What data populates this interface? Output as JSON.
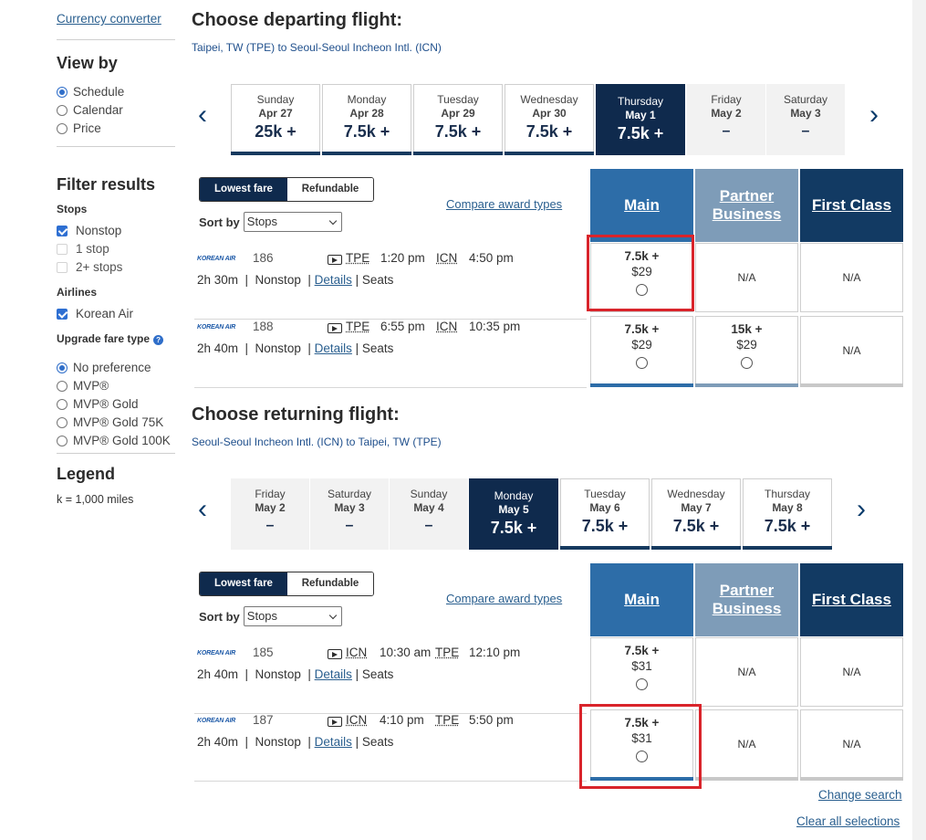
{
  "sidebar": {
    "currency_link": "Currency converter",
    "view_by": {
      "heading": "View by",
      "options": [
        {
          "label": "Schedule",
          "selected": true
        },
        {
          "label": "Calendar",
          "selected": false
        },
        {
          "label": "Price",
          "selected": false
        }
      ]
    },
    "filter": {
      "heading": "Filter results",
      "stops_label": "Stops",
      "stops": [
        {
          "label": "Nonstop",
          "checked": true
        },
        {
          "label": "1 stop",
          "checked": false
        },
        {
          "label": "2+ stops",
          "checked": false
        }
      ],
      "airlines_label": "Airlines",
      "airlines": [
        {
          "label": "Korean Air",
          "checked": true
        }
      ],
      "upgrade_label": "Upgrade fare type",
      "upgrade_help_icon": "?",
      "upgrade_options": [
        {
          "label": "No preference",
          "selected": true
        },
        {
          "label": "MVP®",
          "selected": false
        },
        {
          "label": "MVP® Gold",
          "selected": false
        },
        {
          "label": "MVP® Gold 75K",
          "selected": false
        },
        {
          "label": "MVP® Gold 100K",
          "selected": false
        }
      ]
    },
    "legend": {
      "heading": "Legend",
      "text": "k = 1,000 miles"
    }
  },
  "departing": {
    "title": "Choose departing flight:",
    "route": "Taipei, TW (TPE) to Seoul-Seoul Incheon Intl. (ICN)",
    "dates": [
      {
        "day": "Sunday",
        "date": "Apr 27",
        "price": "25k +",
        "state": "avail"
      },
      {
        "day": "Monday",
        "date": "Apr 28",
        "price": "7.5k +",
        "state": "avail"
      },
      {
        "day": "Tuesday",
        "date": "Apr 29",
        "price": "7.5k +",
        "state": "avail"
      },
      {
        "day": "Wednesday",
        "date": "Apr 30",
        "price": "7.5k +",
        "state": "avail"
      },
      {
        "day": "Thursday",
        "date": "May 1",
        "price": "7.5k +",
        "state": "selected"
      },
      {
        "day": "Friday",
        "date": "May 2",
        "price": "–",
        "state": "na"
      },
      {
        "day": "Saturday",
        "date": "May 3",
        "price": "–",
        "state": "na"
      }
    ],
    "toggle": {
      "lowest": "Lowest fare",
      "refundable": "Refundable"
    },
    "sort": {
      "label": "Sort by",
      "value": "Stops"
    },
    "compare_link": "Compare award types",
    "headers": {
      "main": "Main",
      "partner": "Partner Business",
      "first": "First Class"
    },
    "flights": [
      {
        "airline": "KOREAN AIR",
        "number": "186",
        "from": "TPE",
        "dep": "1:20 pm",
        "to": "ICN",
        "arr": "4:50 pm",
        "duration": "2h 30m",
        "stops": "Nonstop",
        "details": "Details",
        "seats": "Seats",
        "main": {
          "miles": "7.5k +",
          "cash": "$29"
        },
        "partner": "N/A",
        "first": "N/A"
      },
      {
        "airline": "KOREAN AIR",
        "number": "188",
        "from": "TPE",
        "dep": "6:55 pm",
        "to": "ICN",
        "arr": "10:35 pm",
        "duration": "2h 40m",
        "stops": "Nonstop",
        "details": "Details",
        "seats": "Seats",
        "main": {
          "miles": "7.5k +",
          "cash": "$29"
        },
        "partner": {
          "miles": "15k +",
          "cash": "$29"
        },
        "first": "N/A"
      }
    ]
  },
  "returning": {
    "title": "Choose returning flight:",
    "route": "Seoul-Seoul Incheon Intl. (ICN) to Taipei, TW (TPE)",
    "dates": [
      {
        "day": "Friday",
        "date": "May 2",
        "price": "–",
        "state": "na"
      },
      {
        "day": "Saturday",
        "date": "May 3",
        "price": "–",
        "state": "na"
      },
      {
        "day": "Sunday",
        "date": "May 4",
        "price": "–",
        "state": "na"
      },
      {
        "day": "Monday",
        "date": "May 5",
        "price": "7.5k +",
        "state": "selected"
      },
      {
        "day": "Tuesday",
        "date": "May 6",
        "price": "7.5k +",
        "state": "avail"
      },
      {
        "day": "Wednesday",
        "date": "May 7",
        "price": "7.5k +",
        "state": "avail"
      },
      {
        "day": "Thursday",
        "date": "May 8",
        "price": "7.5k +",
        "state": "avail"
      }
    ],
    "toggle": {
      "lowest": "Lowest fare",
      "refundable": "Refundable"
    },
    "sort": {
      "label": "Sort by",
      "value": "Stops"
    },
    "compare_link": "Compare award types",
    "headers": {
      "main": "Main",
      "partner": "Partner Business",
      "first": "First Class"
    },
    "flights": [
      {
        "airline": "KOREAN AIR",
        "number": "185",
        "from": "ICN",
        "dep": "10:30 am",
        "to": "TPE",
        "arr": "12:10 pm",
        "duration": "2h 40m",
        "stops": "Nonstop",
        "details": "Details",
        "seats": "Seats",
        "main": {
          "miles": "7.5k +",
          "cash": "$31"
        },
        "partner": "N/A",
        "first": "N/A"
      },
      {
        "airline": "KOREAN AIR",
        "number": "187",
        "from": "ICN",
        "dep": "4:10 pm",
        "to": "TPE",
        "arr": "5:50 pm",
        "duration": "2h 40m",
        "stops": "Nonstop",
        "details": "Details",
        "seats": "Seats",
        "main": {
          "miles": "7.5k +",
          "cash": "$31"
        },
        "partner": "N/A",
        "first": "N/A"
      }
    ]
  },
  "footer": {
    "change_search": "Change search",
    "clear_all": "Clear all selections"
  },
  "arrows": {
    "prev": "‹",
    "next": "›"
  },
  "colors": {
    "navy": "#0f2a4d",
    "main_blue": "#2d6da8",
    "partner_blue": "#7e9cb8",
    "first_navy": "#123a63",
    "link_blue": "#2a5f8f",
    "highlight_red": "#d9242b"
  }
}
